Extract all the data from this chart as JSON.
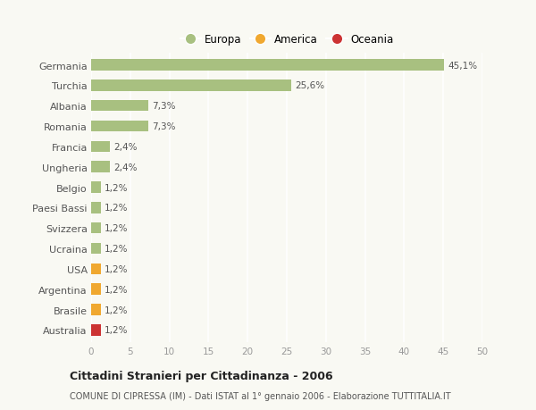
{
  "categories": [
    "Australia",
    "Brasile",
    "Argentina",
    "USA",
    "Ucraina",
    "Svizzera",
    "Paesi Bassi",
    "Belgio",
    "Ungheria",
    "Francia",
    "Romania",
    "Albania",
    "Turchia",
    "Germania"
  ],
  "values": [
    1.2,
    1.2,
    1.2,
    1.2,
    1.2,
    1.2,
    1.2,
    1.2,
    2.4,
    2.4,
    7.3,
    7.3,
    25.6,
    45.1
  ],
  "colors": [
    "#cc3333",
    "#f0a830",
    "#f0a830",
    "#f0a830",
    "#a8c080",
    "#a8c080",
    "#a8c080",
    "#a8c080",
    "#a8c080",
    "#a8c080",
    "#a8c080",
    "#a8c080",
    "#a8c080",
    "#a8c080"
  ],
  "labels": [
    "1,2%",
    "1,2%",
    "1,2%",
    "1,2%",
    "1,2%",
    "1,2%",
    "1,2%",
    "1,2%",
    "2,4%",
    "2,4%",
    "7,3%",
    "7,3%",
    "25,6%",
    "45,1%"
  ],
  "xlim": [
    0,
    50
  ],
  "xticks": [
    0,
    5,
    10,
    15,
    20,
    25,
    30,
    35,
    40,
    45,
    50
  ],
  "legend_items": [
    {
      "label": "Europa",
      "color": "#a8c080"
    },
    {
      "label": "America",
      "color": "#f0a830"
    },
    {
      "label": "Oceania",
      "color": "#cc3333"
    }
  ],
  "title": "Cittadini Stranieri per Cittadinanza - 2006",
  "subtitle": "COMUNE DI CIPRESSA (IM) - Dati ISTAT al 1° gennaio 2006 - Elaborazione TUTTITALIA.IT",
  "background_color": "#f9f9f3",
  "grid_color": "#ffffff",
  "bar_height": 0.55
}
